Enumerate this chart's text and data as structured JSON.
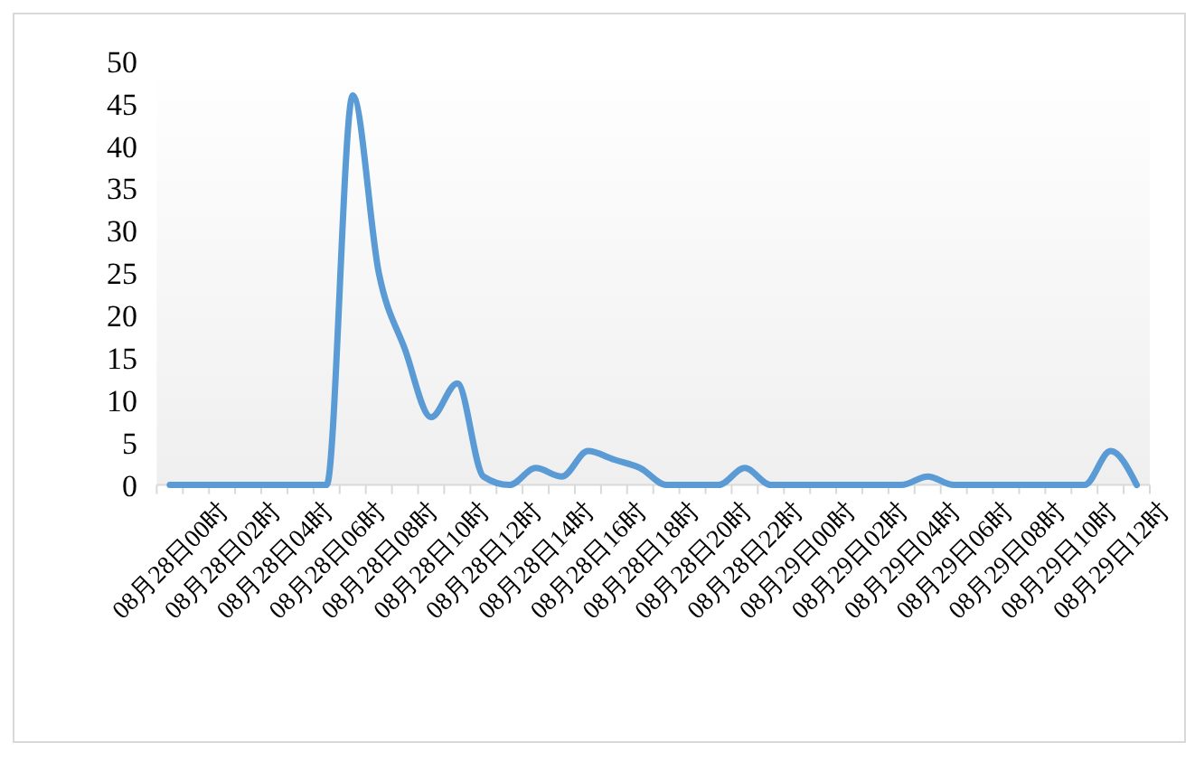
{
  "chart_data": {
    "type": "line",
    "categories": [
      "08月28日00时",
      null,
      "08月28日02时",
      null,
      "08月28日04时",
      null,
      "08月28日06时",
      null,
      "08月28日08时",
      null,
      "08月28日10时",
      null,
      "08月28日12时",
      null,
      "08月28日14时",
      null,
      "08月28日16时",
      null,
      "08月28日18时",
      null,
      "08月28日20时",
      null,
      "08月28日22时",
      null,
      "08月29日00时",
      null,
      "08月29日02时",
      null,
      "08月29日04时",
      null,
      "08月29日06时",
      null,
      "08月29日08时",
      null,
      "08月29日10时",
      null,
      "08月29日12时",
      null
    ],
    "series": [
      {
        "color": "#5b9bd5",
        "values": [
          0,
          0,
          0,
          0,
          0,
          0,
          0,
          46,
          25,
          16,
          8,
          12,
          1,
          0,
          2,
          1,
          4,
          3,
          2,
          0,
          0,
          0,
          2,
          0,
          0,
          0,
          0,
          0,
          0,
          1,
          0,
          0,
          0,
          0,
          0,
          0,
          4,
          0
        ]
      }
    ],
    "ylim": [
      0,
      50
    ],
    "yticks": [
      0,
      5,
      10,
      15,
      20,
      25,
      30,
      35,
      40,
      45,
      50
    ],
    "grid": false,
    "marker": "none",
    "line_style": "solid"
  }
}
